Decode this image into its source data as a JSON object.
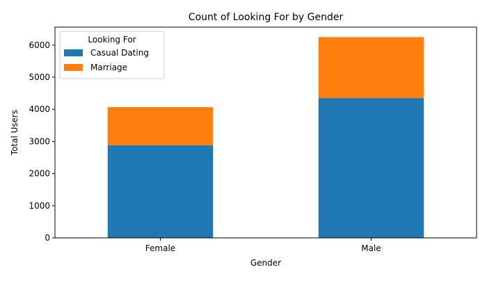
{
  "chart_data": {
    "type": "bar",
    "stacked": true,
    "title": "Count of Looking For by Gender",
    "xlabel": "Gender",
    "ylabel": "Total Users",
    "categories": [
      "Female",
      "Male"
    ],
    "series": [
      {
        "name": "Casual Dating",
        "values": [
          2880,
          4350
        ],
        "color": "#1f77b4"
      },
      {
        "name": "Marriage",
        "values": [
          1190,
          1900
        ],
        "color": "#ff7f0e"
      }
    ],
    "ylim": [
      0,
      6560
    ],
    "yticks": [
      0,
      1000,
      2000,
      3000,
      4000,
      5000,
      6000
    ],
    "grid": false,
    "legend": {
      "title": "Looking For",
      "placement": "top-left"
    }
  }
}
